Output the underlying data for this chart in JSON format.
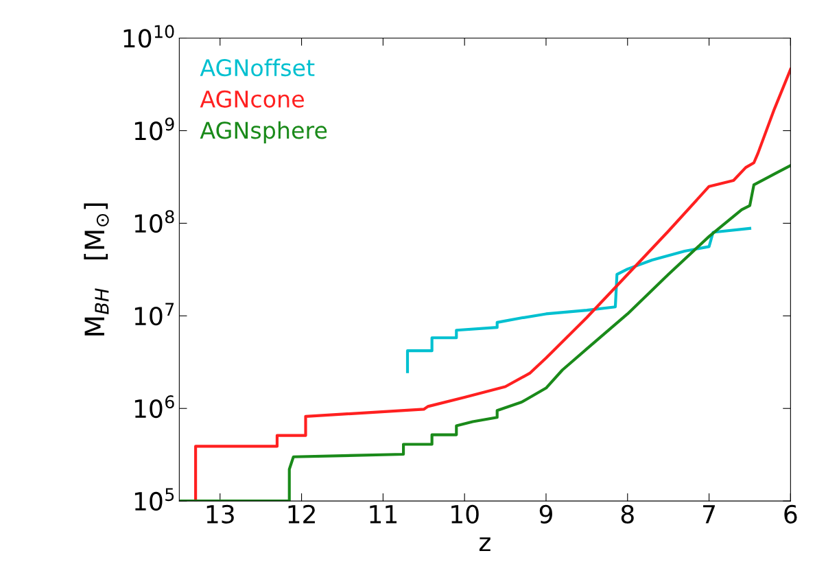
{
  "chart_data": {
    "type": "line",
    "xlabel": "z",
    "ylabel": "M$_{BH}$   [M$_{⊙}$]",
    "log": "y",
    "xlim": [
      13.5,
      6
    ],
    "ylim": [
      100000,
      10000000000
    ],
    "xticks": [
      13,
      12,
      11,
      10,
      9,
      8,
      7,
      6
    ],
    "yticks": [
      {
        "value": 100000,
        "label": "10$^{5}$"
      },
      {
        "value": 1000000,
        "label": "10$^{6}$"
      },
      {
        "value": 10000000,
        "label": "10$^{7}$"
      },
      {
        "value": 100000000,
        "label": "10$^{8}$"
      },
      {
        "value": 1000000000,
        "label": "10$^{9}$"
      },
      {
        "value": 10000000000,
        "label": "10$^{10}$"
      }
    ],
    "legend": "top left",
    "grid": false,
    "series": [
      {
        "name": "AGNoffset",
        "color": "#00c0d0",
        "x": [
          10.7,
          10.7,
          10.4,
          10.4,
          10.1,
          10.1,
          9.6,
          9.6,
          9.3,
          9.0,
          8.5,
          8.15,
          8.13,
          8.0,
          7.7,
          7.3,
          7.0,
          6.95,
          6.5
        ],
        "values": [
          2500000,
          4200000,
          4200000,
          5800000,
          5800000,
          7000000,
          7500000,
          8500000,
          9500000,
          10500000,
          11500000,
          12500000,
          28000000,
          32000000,
          40000000,
          50000000,
          56000000,
          80000000,
          88000000
        ]
      },
      {
        "name": "AGNcone",
        "color": "#ff2020",
        "x": [
          13.3,
          13.3,
          12.3,
          12.3,
          11.95,
          11.95,
          10.5,
          10.45,
          10.0,
          9.5,
          9.2,
          9.0,
          8.5,
          8.0,
          7.5,
          7.0,
          6.7,
          6.55,
          6.45,
          6.4,
          6.2,
          6.0
        ],
        "values": [
          100000,
          390000,
          390000,
          510000,
          510000,
          820000,
          980000,
          1050000,
          1320000,
          1720000,
          2400000,
          3500000,
          9600000,
          28000000,
          82000000,
          250000000,
          290000000,
          400000000,
          450000000,
          570000000,
          1700000000,
          4600000000
        ]
      },
      {
        "name": "AGNsphere",
        "color": "#1a8a1a",
        "x": [
          13.5,
          12.15,
          12.15,
          12.1,
          10.75,
          10.75,
          10.4,
          10.4,
          10.1,
          10.1,
          9.9,
          9.6,
          9.6,
          9.3,
          9.0,
          8.8,
          8.5,
          8.0,
          7.5,
          7.0,
          6.6,
          6.5,
          6.45,
          6.2,
          6.0
        ],
        "values": [
          100000,
          100000,
          220000,
          300000,
          320000,
          410000,
          410000,
          520000,
          520000,
          650000,
          720000,
          800000,
          950000,
          1170000,
          1660000,
          2600000,
          4400000,
          10500000,
          28000000,
          72000000,
          140000000,
          155000000,
          260000000,
          340000000,
          420000000
        ]
      }
    ]
  }
}
